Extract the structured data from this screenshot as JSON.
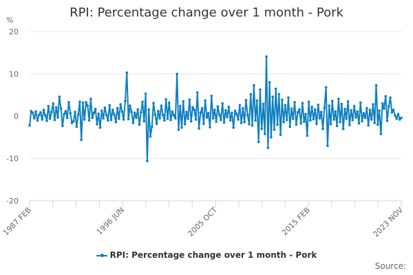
{
  "chart_data": {
    "type": "line",
    "title": "RPI: Percentage change over 1 month - Pork",
    "ylabel": "%",
    "xlabel": "",
    "ylim": [
      -20,
      20
    ],
    "yticks": [
      20,
      10,
      0,
      -10,
      -20
    ],
    "xtick_labels": [
      "1987 FEB",
      "1996 JUN",
      "2005 OCT",
      "2015 FEB",
      "2023 NOV"
    ],
    "grid": true,
    "legend_position": "bottom",
    "series": [
      {
        "name": "RPI: Percentage change over 1 month - Pork",
        "color": "#0c7ec2",
        "x_start": "1987 FEB",
        "x_end": "2023 NOV",
        "step_months": 2,
        "values": [
          -2.2,
          1.2,
          0.8,
          -0.5,
          1.1,
          -1.0,
          0.3,
          0.9,
          -0.8,
          1.5,
          0.2,
          -1.1,
          2.4,
          -0.6,
          1.0,
          3.0,
          -0.9,
          2.1,
          -0.3,
          4.6,
          1.8,
          -2.3,
          0.5,
          1.2,
          -0.4,
          3.3,
          0.7,
          -1.6,
          -1.2,
          1.0,
          -2.5,
          0.4,
          3.4,
          -5.6,
          3.2,
          -0.8,
          3.3,
          2.5,
          -1.0,
          4.1,
          -0.4,
          0.8,
          1.7,
          -1.9,
          0.6,
          -2.7,
          1.3,
          -0.5,
          2.0,
          0.3,
          -1.0,
          2.6,
          -0.9,
          1.5,
          0.4,
          -1.4,
          1.9,
          -0.6,
          2.8,
          1.1,
          -0.8,
          3.6,
          10.3,
          -0.7,
          2.5,
          1.0,
          -1.6,
          0.8,
          -0.4,
          1.6,
          -2.0,
          0.9,
          3.4,
          -1.2,
          5.3,
          -10.6,
          1.6,
          -4.8,
          -2.5,
          3.1,
          0.4,
          -1.8,
          1.2,
          -0.5,
          2.5,
          0.3,
          -1.0,
          4.0,
          -0.6,
          3.2,
          -0.9,
          1.1,
          0.2,
          -0.5,
          10.0,
          -3.2,
          2.4,
          -2.7,
          3.5,
          -1.9,
          1.0,
          -0.6,
          3.9,
          -1.2,
          2.1,
          1.5,
          -0.8,
          5.6,
          -2.9,
          0.8,
          1.9,
          -1.8,
          3.7,
          -0.3,
          0.7,
          -2.6,
          4.8,
          -0.5,
          1.5,
          -1.3,
          2.3,
          0.4,
          -0.9,
          3.0,
          -1.5,
          1.4,
          -0.2,
          2.2,
          -1.0,
          0.8,
          -2.7,
          1.3,
          0.5,
          -0.8,
          2.6,
          -1.6,
          1.9,
          -1.4,
          3.8,
          0.3,
          -1.9,
          5.2,
          -2.2,
          7.3,
          -1.0,
          3.7,
          -6.1,
          6.3,
          -3.0,
          2.9,
          -4.2,
          14.1,
          -7.5,
          8.0,
          -5.0,
          4.6,
          -3.2,
          6.5,
          -2.0,
          5.2,
          -4.4,
          3.9,
          -1.4,
          2.6,
          -0.9,
          4.4,
          -2.5,
          1.8,
          -0.6,
          3.3,
          -2.0,
          0.9,
          1.6,
          -1.7,
          3.1,
          -1.3,
          0.5,
          -4.6,
          3.4,
          -1.0,
          2.2,
          -0.7,
          1.6,
          -1.8,
          2.7,
          -0.5,
          1.0,
          -3.0,
          2.0,
          6.8,
          -7.0,
          2.5,
          -1.9,
          3.6,
          -0.8,
          1.1,
          -2.3,
          4.1,
          -1.4,
          2.9,
          -3.0,
          1.7,
          -0.6,
          3.5,
          -2.1,
          1.4,
          -0.9,
          2.4,
          -0.3,
          1.1,
          -1.7,
          3.2,
          -1.2,
          0.7,
          -0.4,
          1.9,
          -2.2,
          1.5,
          -0.8,
          2.8,
          -1.6,
          7.3,
          -2.0,
          1.3,
          -4.2,
          3.0,
          1.8,
          4.7,
          -1.1,
          2.3,
          4.4,
          0.9,
          1.5,
          0.2,
          -0.6,
          0.5,
          -0.8,
          -0.4
        ]
      }
    ]
  },
  "header": {
    "title": "RPI: Percentage change over 1 month - Pork",
    "unit_label": "%"
  },
  "legend": {
    "label": "RPI: Percentage change over 1 month - Pork"
  },
  "footer": {
    "source_label": "Source:"
  }
}
